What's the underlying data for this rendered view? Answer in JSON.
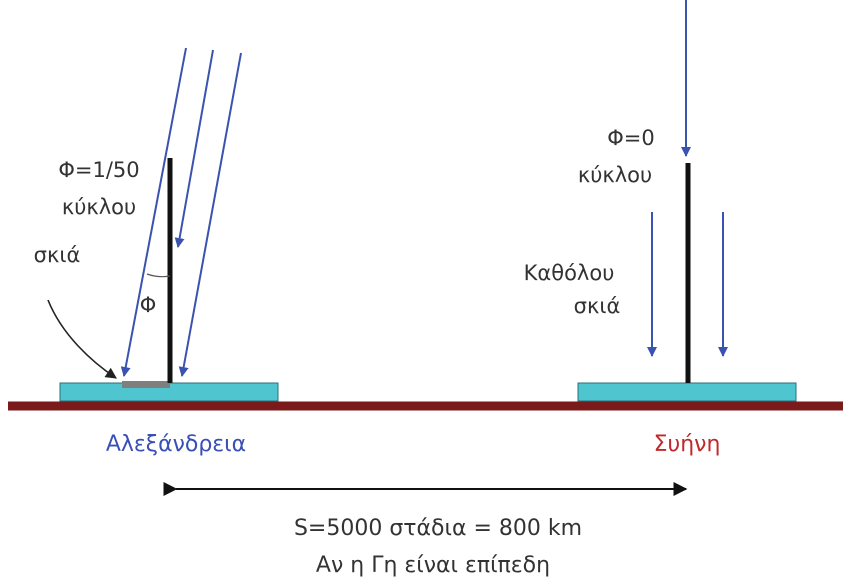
{
  "colors": {
    "ray": "#3a52b0",
    "pole": "#111111",
    "ground": "#7a1a1a",
    "base": "#4fc6cf",
    "base_border": "#2a6f78",
    "shadow": "#7f7f7f",
    "alexandria_text": "#3a4fb5",
    "syene_text": "#c0282a",
    "text": "#333333"
  },
  "alexandria": {
    "name": "Αλεξάνδρεια",
    "angle_label_line1": "Φ=1/50",
    "angle_label_line2": "κύκλου",
    "shadow_label": "σκιά",
    "angle_symbol": "Φ"
  },
  "syene": {
    "name": "Συήνη",
    "angle_label_line1": "Φ=0",
    "angle_label_line2": "κύκλου",
    "no_shadow_line1": "Καθόλου",
    "no_shadow_line2": "σκιά"
  },
  "distance_label": "S=5000 στάδια = 800 km",
  "caption": "Αν η Γη είναι επίπεδη"
}
